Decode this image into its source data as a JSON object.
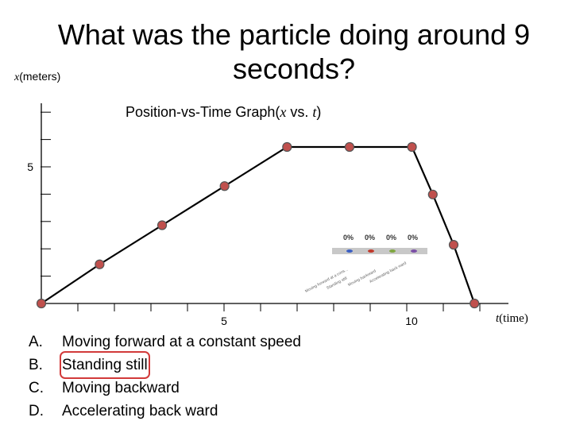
{
  "slide": {
    "title": "What was the particle doing around 9 seconds?",
    "ylabel_var": "x",
    "ylabel_unit": "(meters)",
    "subtitle_text": "Position-vs-Time Graph(",
    "subtitle_x": "x",
    "subtitle_vs": " vs.  ",
    "subtitle_t": "t",
    "subtitle_close": ")",
    "xlabel_var": "t",
    "xlabel_unit": "(time)"
  },
  "answers": [
    {
      "letter": "A.",
      "text": "Moving forward at a constant speed"
    },
    {
      "letter": "B.",
      "text": "Standing still",
      "selected": true
    },
    {
      "letter": "C.",
      "text": "Moving backward"
    },
    {
      "letter": "D.",
      "text": "Accelerating back ward"
    }
  ],
  "poll": {
    "percentages": [
      "0%",
      "0%",
      "0%",
      "0%"
    ],
    "options": [
      "Moving forward at a cons...",
      "Standing still",
      "Moving backward",
      "Accelerating back ward"
    ],
    "colors": [
      "#3b5fc4",
      "#c0392b",
      "#7fa640",
      "#7b4fa6"
    ]
  },
  "chart_data": {
    "type": "line",
    "title": "Position-vs-Time Graph(x vs. t)",
    "xlabel": "t(time)",
    "ylabel": "x(meters)",
    "xlim": [
      0,
      13
    ],
    "ylim": [
      0,
      9
    ],
    "x_tick_labels": [
      {
        "value": 5,
        "label": "5"
      },
      {
        "value": 10,
        "label": "10"
      }
    ],
    "y_tick_labels": [
      {
        "value": 5,
        "label": "5"
      }
    ],
    "x_minor_ticks": [
      1,
      2,
      3,
      4,
      5,
      6,
      7,
      8,
      9,
      10,
      11,
      12
    ],
    "y_minor_ticks": [
      1,
      2,
      3,
      4,
      5,
      6,
      7,
      8
    ],
    "series": [
      {
        "x": [
          0,
          1.4,
          2.9,
          4.4,
          5.9,
          7.4,
          8.9,
          9.4,
          9.9,
          10.4
        ],
        "y": [
          0,
          1.4,
          2.8,
          4.2,
          5.6,
          5.6,
          5.6,
          3.9,
          2.1,
          0
        ],
        "color": "#000000",
        "marker_color": "#c0504d"
      }
    ]
  }
}
